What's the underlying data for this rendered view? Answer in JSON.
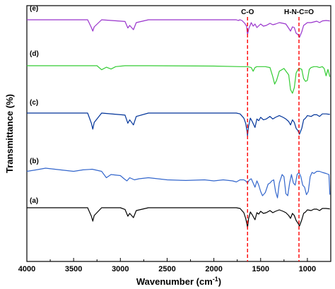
{
  "chart_data": {
    "type": "line",
    "xlabel": "Wavenumber (cm",
    "xlabel_sup": "-1",
    "xlabel_end": ")",
    "ylabel": "Transmittance (%)",
    "xlim": [
      4000,
      750
    ],
    "x_reversed": true,
    "x_ticks": [
      4000,
      3500,
      3000,
      2500,
      2000,
      1500,
      1000
    ],
    "grid": false,
    "legend": "none",
    "annotations": [
      {
        "label": "C-O",
        "x": 1640,
        "color": "#ff0000",
        "style": "dashed"
      },
      {
        "label": "H-N-C=O",
        "x": 1090,
        "color": "#ff0000",
        "style": "dashed"
      }
    ],
    "series": [
      {
        "id": "e",
        "label": "(e)",
        "color": "#9933cc",
        "offset": 0.0,
        "x": [
          4000,
          3350,
          3310,
          3295,
          3280,
          3200,
          2950,
          2920,
          2900,
          2880,
          2860,
          2830,
          2700,
          1760,
          1740,
          1720,
          1700,
          1670,
          1650,
          1640,
          1625,
          1600,
          1580,
          1560,
          1540,
          1500,
          1470,
          1440,
          1400,
          1370,
          1340,
          1300,
          1260,
          1230,
          1200,
          1180,
          1160,
          1140,
          1120,
          1100,
          1085,
          1060,
          1040,
          1020,
          1000,
          960,
          930,
          900,
          870,
          840,
          800,
          760
        ],
        "y": [
          0.0,
          0.0,
          0.55,
          0.8,
          0.5,
          0.0,
          0.12,
          0.58,
          0.4,
          0.55,
          0.7,
          0.2,
          0.0,
          0.0,
          0.05,
          0.0,
          0.05,
          0.25,
          0.45,
          1.05,
          0.6,
          0.2,
          0.45,
          0.3,
          0.55,
          0.3,
          0.45,
          0.4,
          0.25,
          0.35,
          0.3,
          0.2,
          0.25,
          0.3,
          0.6,
          0.8,
          0.5,
          0.55,
          0.95,
          1.05,
          1.25,
          0.85,
          0.4,
          0.3,
          0.2,
          0.2,
          0.15,
          0.1,
          0.2,
          0.08,
          0.05,
          0.08
        ]
      },
      {
        "id": "d",
        "label": "(d)",
        "color": "#33cc33",
        "offset": 0.0,
        "x": [
          4000,
          3250,
          3200,
          3150,
          3100,
          3050,
          2950,
          2700,
          2000,
          1720,
          1640,
          1600,
          1580,
          1560,
          1540,
          1500,
          1450,
          1400,
          1370,
          1350,
          1330,
          1300,
          1250,
          1200,
          1180,
          1160,
          1140,
          1120,
          1100,
          1080,
          1060,
          1040,
          1020,
          1000,
          980,
          960,
          930,
          900,
          870,
          840,
          820,
          800,
          780,
          760
        ],
        "y": [
          0.0,
          0.0,
          0.22,
          0.08,
          0.18,
          0.05,
          0.0,
          0.0,
          0.02,
          0.05,
          0.05,
          0.1,
          0.3,
          0.1,
          0.05,
          0.05,
          0.05,
          0.1,
          0.6,
          1.0,
          0.8,
          0.3,
          0.15,
          0.5,
          1.3,
          1.5,
          1.2,
          0.4,
          0.2,
          0.15,
          0.2,
          0.7,
          0.85,
          0.8,
          0.2,
          0.1,
          0.05,
          0.05,
          0.1,
          0.05,
          0.15,
          0.55,
          0.2,
          0.6
        ]
      },
      {
        "id": "c",
        "label": "(c)",
        "color": "#003399",
        "offset": 0.0,
        "x": [
          4000,
          3350,
          3310,
          3295,
          3280,
          3200,
          2950,
          2920,
          2900,
          2880,
          2860,
          2830,
          2700,
          1760,
          1720,
          1680,
          1660,
          1645,
          1640,
          1630,
          1610,
          1590,
          1560,
          1540,
          1520,
          1500,
          1470,
          1440,
          1400,
          1370,
          1340,
          1300,
          1260,
          1230,
          1200,
          1180,
          1160,
          1140,
          1120,
          1100,
          1085,
          1060,
          1040,
          1020,
          1000,
          960,
          930,
          900,
          870,
          840,
          800,
          760
        ],
        "y": [
          0.0,
          0.0,
          0.6,
          0.95,
          0.55,
          0.0,
          0.12,
          0.6,
          0.4,
          0.55,
          0.7,
          0.2,
          0.0,
          0.0,
          0.05,
          0.3,
          0.6,
          1.1,
          1.35,
          0.8,
          0.3,
          0.5,
          0.85,
          0.35,
          0.45,
          0.25,
          0.4,
          0.35,
          0.2,
          0.35,
          0.25,
          0.15,
          0.25,
          0.35,
          0.5,
          0.7,
          0.4,
          0.55,
          0.9,
          1.05,
          1.25,
          0.9,
          0.4,
          0.3,
          0.15,
          0.2,
          0.1,
          0.1,
          0.2,
          0.05,
          0.05,
          0.08
        ]
      },
      {
        "id": "b",
        "label": "(b)",
        "color": "#3366cc",
        "offset": 0.0,
        "x": [
          4000,
          3900,
          3800,
          3700,
          3600,
          3500,
          3400,
          3300,
          3200,
          3150,
          3100,
          3000,
          2960,
          2930,
          2900,
          2850,
          2800,
          2700,
          2500,
          2300,
          2100,
          2000,
          1900,
          1800,
          1760,
          1720,
          1680,
          1660,
          1640,
          1620,
          1600,
          1580,
          1560,
          1540,
          1520,
          1500,
          1480,
          1450,
          1420,
          1400,
          1380,
          1360,
          1340,
          1320,
          1300,
          1270,
          1250,
          1230,
          1210,
          1190,
          1170,
          1150,
          1130,
          1110,
          1090,
          1070,
          1050,
          1030,
          1010,
          990,
          970,
          950,
          930,
          900,
          870,
          840,
          800,
          770,
          760
        ],
        "y": [
          0.15,
          0.08,
          0.0,
          0.05,
          0.1,
          0.15,
          0.08,
          0.05,
          0.15,
          0.45,
          0.3,
          0.35,
          0.5,
          0.6,
          0.45,
          0.55,
          0.5,
          0.45,
          0.55,
          0.58,
          0.55,
          0.6,
          0.55,
          0.6,
          0.65,
          0.55,
          0.55,
          0.6,
          0.7,
          0.55,
          0.5,
          0.7,
          0.9,
          0.6,
          0.8,
          1.1,
          1.3,
          1.15,
          0.75,
          0.7,
          0.6,
          0.55,
          1.1,
          1.4,
          0.7,
          0.3,
          0.4,
          1.2,
          1.3,
          0.7,
          0.3,
          0.7,
          0.8,
          0.3,
          0.2,
          0.4,
          0.8,
          0.9,
          1.25,
          1.1,
          0.4,
          0.2,
          0.25,
          0.15,
          0.15,
          0.2,
          0.25,
          0.3,
          1.25
        ]
      },
      {
        "id": "a",
        "label": "(a)",
        "color": "#000000",
        "offset": 0.0,
        "x": [
          4000,
          3350,
          3310,
          3295,
          3280,
          3200,
          3000,
          2950,
          2920,
          2900,
          2880,
          2860,
          2830,
          2700,
          1760,
          1720,
          1700,
          1680,
          1660,
          1645,
          1640,
          1630,
          1610,
          1590,
          1560,
          1540,
          1520,
          1500,
          1470,
          1440,
          1400,
          1370,
          1340,
          1300,
          1260,
          1230,
          1200,
          1180,
          1160,
          1140,
          1120,
          1100,
          1085,
          1060,
          1040,
          1020,
          1000,
          960,
          930,
          900,
          870,
          840,
          800,
          760
        ],
        "y": [
          0.0,
          0.0,
          0.6,
          0.95,
          0.55,
          0.0,
          0.0,
          0.12,
          0.6,
          0.4,
          0.55,
          0.7,
          0.2,
          0.0,
          0.0,
          0.05,
          0.2,
          0.35,
          0.75,
          1.2,
          1.45,
          0.8,
          0.3,
          0.5,
          0.85,
          0.35,
          0.45,
          0.25,
          0.4,
          0.35,
          0.2,
          0.35,
          0.25,
          0.15,
          0.25,
          0.35,
          0.55,
          0.75,
          0.4,
          0.55,
          0.9,
          1.1,
          1.3,
          0.85,
          0.4,
          0.3,
          0.15,
          0.2,
          0.1,
          0.1,
          0.2,
          0.05,
          0.05,
          0.08
        ]
      }
    ]
  }
}
